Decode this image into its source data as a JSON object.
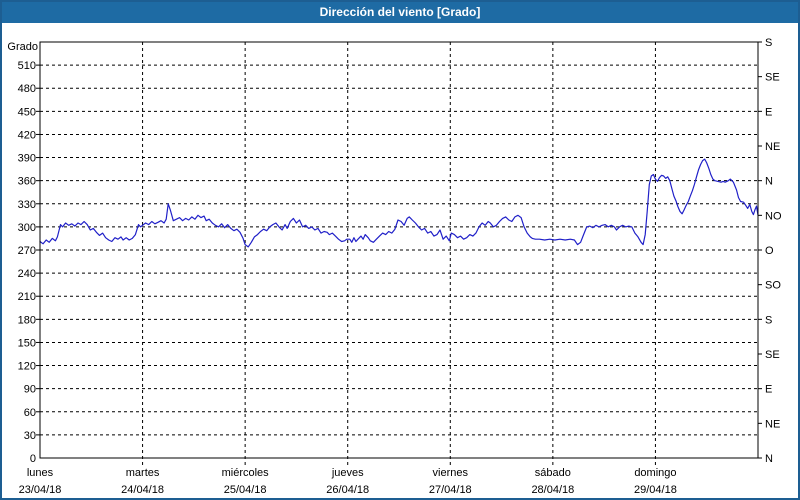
{
  "window": {
    "title": "Dirección del viento [Grado]"
  },
  "colors": {
    "titlebar_bg": "#1e6ba4",
    "window_border": "#1d5e92",
    "series_line": "#2020c8",
    "grid": "#000000",
    "plot_bg": "#ffffff",
    "text": "#000000"
  },
  "chart_data": {
    "type": "line",
    "title": "Dirección del viento [Grado]",
    "y_axis_label": "Grado",
    "ylim": [
      0,
      540
    ],
    "y_left_tick_step": 30,
    "y_left_ticks": [
      0,
      30,
      60,
      90,
      120,
      150,
      180,
      210,
      240,
      270,
      300,
      330,
      360,
      390,
      420,
      450,
      480,
      510
    ],
    "y_right_ticks": [
      {
        "deg": 0,
        "label": "N"
      },
      {
        "deg": 45,
        "label": "NE"
      },
      {
        "deg": 90,
        "label": "E"
      },
      {
        "deg": 135,
        "label": "SE"
      },
      {
        "deg": 180,
        "label": "S"
      },
      {
        "deg": 225,
        "label": "SO"
      },
      {
        "deg": 270,
        "label": "O"
      },
      {
        "deg": 315,
        "label": "NO"
      },
      {
        "deg": 360,
        "label": "N"
      },
      {
        "deg": 405,
        "label": "NE"
      },
      {
        "deg": 450,
        "label": "E"
      },
      {
        "deg": 495,
        "label": "SE"
      },
      {
        "deg": 540,
        "label": "S"
      }
    ],
    "x_days": [
      {
        "name": "lunes",
        "date": "23/04/18"
      },
      {
        "name": "martes",
        "date": "24/04/18"
      },
      {
        "name": "miércoles",
        "date": "25/04/18"
      },
      {
        "name": "jueves",
        "date": "26/04/18"
      },
      {
        "name": "viernes",
        "date": "27/04/18"
      },
      {
        "name": "sábado",
        "date": "28/04/18"
      },
      {
        "name": "domingo",
        "date": "29/04/18"
      }
    ],
    "grid": "dashed",
    "legend": "none",
    "series": [
      {
        "name": "Dirección del viento",
        "unit": "Grado",
        "points": [
          [
            0.0,
            281
          ],
          [
            0.03,
            278
          ],
          [
            0.06,
            283
          ],
          [
            0.09,
            280
          ],
          [
            0.12,
            285
          ],
          [
            0.15,
            282
          ],
          [
            0.17,
            287
          ],
          [
            0.2,
            303
          ],
          [
            0.22,
            300
          ],
          [
            0.25,
            305
          ],
          [
            0.28,
            302
          ],
          [
            0.31,
            304
          ],
          [
            0.34,
            301
          ],
          [
            0.37,
            305
          ],
          [
            0.4,
            303
          ],
          [
            0.43,
            307
          ],
          [
            0.46,
            303
          ],
          [
            0.49,
            296
          ],
          [
            0.52,
            298
          ],
          [
            0.55,
            293
          ],
          [
            0.58,
            289
          ],
          [
            0.61,
            292
          ],
          [
            0.64,
            286
          ],
          [
            0.67,
            283
          ],
          [
            0.7,
            281
          ],
          [
            0.73,
            286
          ],
          [
            0.76,
            284
          ],
          [
            0.79,
            287
          ],
          [
            0.81,
            283
          ],
          [
            0.84,
            286
          ],
          [
            0.87,
            283
          ],
          [
            0.9,
            285
          ],
          [
            0.93,
            290
          ],
          [
            0.96,
            303
          ],
          [
            0.98,
            300
          ],
          [
            1.0,
            302
          ],
          [
            1.03,
            305
          ],
          [
            1.06,
            303
          ],
          [
            1.09,
            307
          ],
          [
            1.12,
            304
          ],
          [
            1.15,
            306
          ],
          [
            1.18,
            308
          ],
          [
            1.21,
            305
          ],
          [
            1.23,
            310
          ],
          [
            1.25,
            330
          ],
          [
            1.27,
            322
          ],
          [
            1.3,
            308
          ],
          [
            1.33,
            310
          ],
          [
            1.36,
            312
          ],
          [
            1.39,
            308
          ],
          [
            1.42,
            311
          ],
          [
            1.45,
            309
          ],
          [
            1.48,
            313
          ],
          [
            1.51,
            310
          ],
          [
            1.54,
            315
          ],
          [
            1.57,
            312
          ],
          [
            1.6,
            314
          ],
          [
            1.62,
            308
          ],
          [
            1.65,
            310
          ],
          [
            1.68,
            305
          ],
          [
            1.71,
            302
          ],
          [
            1.74,
            300
          ],
          [
            1.77,
            304
          ],
          [
            1.8,
            299
          ],
          [
            1.83,
            303
          ],
          [
            1.86,
            298
          ],
          [
            1.89,
            295
          ],
          [
            1.92,
            297
          ],
          [
            1.95,
            293
          ],
          [
            1.98,
            285
          ],
          [
            2.0,
            277
          ],
          [
            2.03,
            274
          ],
          [
            2.06,
            280
          ],
          [
            2.09,
            287
          ],
          [
            2.12,
            290
          ],
          [
            2.15,
            294
          ],
          [
            2.18,
            297
          ],
          [
            2.21,
            295
          ],
          [
            2.24,
            300
          ],
          [
            2.27,
            303
          ],
          [
            2.3,
            305
          ],
          [
            2.33,
            300
          ],
          [
            2.36,
            296
          ],
          [
            2.39,
            303
          ],
          [
            2.41,
            298
          ],
          [
            2.44,
            307
          ],
          [
            2.47,
            311
          ],
          [
            2.5,
            305
          ],
          [
            2.53,
            309
          ],
          [
            2.56,
            300
          ],
          [
            2.59,
            302
          ],
          [
            2.62,
            298
          ],
          [
            2.65,
            300
          ],
          [
            2.68,
            296
          ],
          [
            2.71,
            298
          ],
          [
            2.74,
            292
          ],
          [
            2.77,
            294
          ],
          [
            2.8,
            293
          ],
          [
            2.82,
            290
          ],
          [
            2.85,
            292
          ],
          [
            2.88,
            288
          ],
          [
            2.91,
            284
          ],
          [
            2.94,
            281
          ],
          [
            2.97,
            282
          ],
          [
            2.99,
            284
          ],
          [
            3.02,
            284
          ],
          [
            3.04,
            280
          ],
          [
            3.06,
            286
          ],
          [
            3.08,
            281
          ],
          [
            3.1,
            284
          ],
          [
            3.13,
            288
          ],
          [
            3.15,
            284
          ],
          [
            3.17,
            290
          ],
          [
            3.2,
            286
          ],
          [
            3.22,
            282
          ],
          [
            3.25,
            280
          ],
          [
            3.28,
            284
          ],
          [
            3.31,
            288
          ],
          [
            3.34,
            292
          ],
          [
            3.37,
            290
          ],
          [
            3.4,
            294
          ],
          [
            3.43,
            292
          ],
          [
            3.46,
            297
          ],
          [
            3.49,
            309
          ],
          [
            3.52,
            307
          ],
          [
            3.55,
            302
          ],
          [
            3.58,
            311
          ],
          [
            3.6,
            313
          ],
          [
            3.63,
            309
          ],
          [
            3.66,
            305
          ],
          [
            3.69,
            300
          ],
          [
            3.72,
            296
          ],
          [
            3.75,
            298
          ],
          [
            3.78,
            292
          ],
          [
            3.81,
            294
          ],
          [
            3.84,
            288
          ],
          [
            3.87,
            290
          ],
          [
            3.9,
            296
          ],
          [
            3.93,
            284
          ],
          [
            3.96,
            288
          ],
          [
            3.99,
            282
          ],
          [
            4.01,
            292
          ],
          [
            4.04,
            290
          ],
          [
            4.07,
            286
          ],
          [
            4.1,
            288
          ],
          [
            4.13,
            284
          ],
          [
            4.16,
            286
          ],
          [
            4.19,
            290
          ],
          [
            4.22,
            288
          ],
          [
            4.25,
            292
          ],
          [
            4.28,
            300
          ],
          [
            4.31,
            305
          ],
          [
            4.34,
            302
          ],
          [
            4.37,
            307
          ],
          [
            4.39,
            305
          ],
          [
            4.42,
            300
          ],
          [
            4.45,
            302
          ],
          [
            4.48,
            307
          ],
          [
            4.51,
            311
          ],
          [
            4.54,
            313
          ],
          [
            4.57,
            309
          ],
          [
            4.6,
            307
          ],
          [
            4.63,
            313
          ],
          [
            4.66,
            315
          ],
          [
            4.69,
            312
          ],
          [
            4.72,
            300
          ],
          [
            4.75,
            292
          ],
          [
            4.78,
            287
          ],
          [
            4.8,
            285
          ],
          [
            4.83,
            284
          ],
          [
            4.87,
            284
          ],
          [
            4.92,
            283
          ],
          [
            4.97,
            284
          ],
          [
            5.02,
            283
          ],
          [
            5.07,
            284
          ],
          [
            5.12,
            283
          ],
          [
            5.17,
            284
          ],
          [
            5.21,
            283
          ],
          [
            5.24,
            277
          ],
          [
            5.27,
            280
          ],
          [
            5.3,
            290
          ],
          [
            5.33,
            300
          ],
          [
            5.36,
            301
          ],
          [
            5.39,
            299
          ],
          [
            5.42,
            302
          ],
          [
            5.45,
            300
          ],
          [
            5.48,
            302
          ],
          [
            5.51,
            303
          ],
          [
            5.54,
            300
          ],
          [
            5.57,
            302
          ],
          [
            5.6,
            300
          ],
          [
            5.62,
            296
          ],
          [
            5.65,
            300
          ],
          [
            5.68,
            302
          ],
          [
            5.71,
            300
          ],
          [
            5.74,
            301
          ],
          [
            5.77,
            300
          ],
          [
            5.8,
            292
          ],
          [
            5.83,
            287
          ],
          [
            5.86,
            280
          ],
          [
            5.88,
            277
          ],
          [
            5.9,
            290
          ],
          [
            5.92,
            320
          ],
          [
            5.94,
            355
          ],
          [
            5.96,
            366
          ],
          [
            5.98,
            368
          ],
          [
            6.0,
            362
          ],
          [
            6.02,
            359
          ],
          [
            6.04,
            364
          ],
          [
            6.06,
            367
          ],
          [
            6.08,
            366
          ],
          [
            6.1,
            363
          ],
          [
            6.12,
            365
          ],
          [
            6.14,
            360
          ],
          [
            6.16,
            350
          ],
          [
            6.18,
            340
          ],
          [
            6.2,
            334
          ],
          [
            6.22,
            326
          ],
          [
            6.24,
            320
          ],
          [
            6.26,
            317
          ],
          [
            6.28,
            322
          ],
          [
            6.3,
            328
          ],
          [
            6.32,
            333
          ],
          [
            6.34,
            340
          ],
          [
            6.36,
            347
          ],
          [
            6.38,
            355
          ],
          [
            6.4,
            365
          ],
          [
            6.42,
            374
          ],
          [
            6.44,
            381
          ],
          [
            6.46,
            386
          ],
          [
            6.48,
            388
          ],
          [
            6.5,
            383
          ],
          [
            6.52,
            376
          ],
          [
            6.54,
            368
          ],
          [
            6.56,
            362
          ],
          [
            6.58,
            360
          ],
          [
            6.61,
            359
          ],
          [
            6.64,
            358
          ],
          [
            6.66,
            359
          ],
          [
            6.68,
            358
          ],
          [
            6.71,
            360
          ],
          [
            6.73,
            362
          ],
          [
            6.76,
            358
          ],
          [
            6.79,
            348
          ],
          [
            6.81,
            338
          ],
          [
            6.83,
            333
          ],
          [
            6.86,
            332
          ],
          [
            6.88,
            328
          ],
          [
            6.9,
            324
          ],
          [
            6.92,
            329
          ],
          [
            6.94,
            320
          ],
          [
            6.955,
            316
          ],
          [
            6.97,
            322
          ],
          [
            6.985,
            327
          ],
          [
            7.0,
            315
          ]
        ]
      }
    ]
  }
}
